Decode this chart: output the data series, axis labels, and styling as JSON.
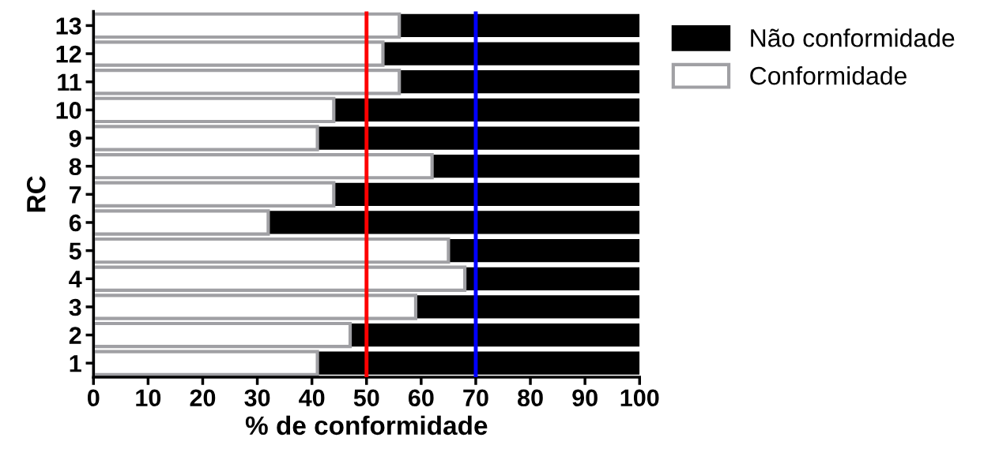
{
  "chart_data": {
    "type": "bar",
    "orientation": "horizontal",
    "stacked": true,
    "categories": [
      "13",
      "12",
      "11",
      "10",
      "9",
      "8",
      "7",
      "6",
      "5",
      "4",
      "3",
      "2",
      "1"
    ],
    "series": [
      {
        "name": "Conformidade",
        "color": "#ffffff",
        "values": [
          56,
          53,
          56,
          44,
          41,
          62,
          44,
          32,
          65,
          68,
          59,
          47,
          41
        ]
      },
      {
        "name": "Não conformidade",
        "color": "#000000",
        "values": [
          44,
          47,
          44,
          56,
          59,
          38,
          56,
          68,
          35,
          32,
          41,
          53,
          59
        ]
      }
    ],
    "xlabel": "% de conformidade",
    "ylabel": "RC",
    "xlim": [
      0,
      100
    ],
    "xticks": [
      0,
      10,
      20,
      30,
      40,
      50,
      60,
      70,
      80,
      90,
      100
    ],
    "ref_lines": [
      {
        "axis": "x",
        "value": 50,
        "color": "#ff0000"
      },
      {
        "axis": "x",
        "value": 70,
        "color": "#0000ff"
      }
    ],
    "legend": "top right",
    "grid": false
  }
}
